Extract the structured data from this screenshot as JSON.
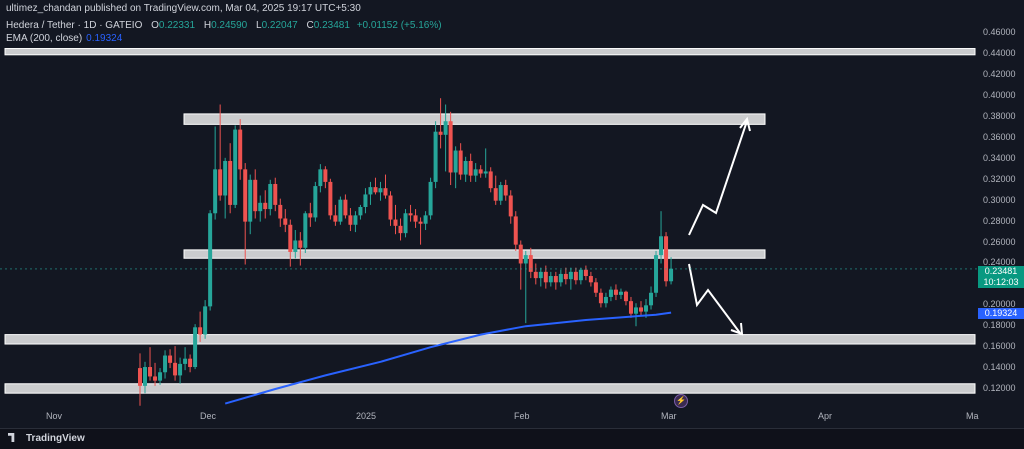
{
  "header": {
    "published": "ultimez_chandan published on TradingView.com, Mar 04, 2025 19:17 UTC+5:30"
  },
  "legend": {
    "symbol": "Hedera / Tether · 1D · GATEIO",
    "open_label": "O",
    "open": "0.22331",
    "high_label": "H",
    "high": "0.24590",
    "low_label": "L",
    "low": "0.22047",
    "close_label": "C",
    "close": "0.23481",
    "change": "+0.01152 (+5.16%)"
  },
  "ema": {
    "label": "EMA (200, close)",
    "value": "0.19324"
  },
  "price_axis": {
    "ticks": [
      "0.46000",
      "0.44000",
      "0.42000",
      "0.40000",
      "0.38000",
      "0.36000",
      "0.34000",
      "0.32000",
      "0.30000",
      "0.28000",
      "0.26000",
      "0.24000",
      "0.22000",
      "0.20000",
      "0.18000",
      "0.16000",
      "0.14000",
      "0.12000"
    ],
    "current_price": "0.23481",
    "countdown": "10:12:03",
    "ema_price": "0.19324"
  },
  "time_axis": {
    "ticks": [
      "Nov",
      "Dec",
      "2025",
      "Feb",
      "Mar",
      "Apr",
      "Ma"
    ]
  },
  "colors": {
    "up": "#26a69a",
    "down": "#ef5350",
    "ema": "#2962ff",
    "zone": "#ffffff",
    "arrow": "#ffffff"
  },
  "footer": {
    "brand": "TradingView"
  },
  "chart_data": {
    "type": "candlestick",
    "ylim": [
      0.105,
      0.47
    ],
    "candles": [
      {
        "d": "2024-11-18",
        "o": 0.14,
        "h": 0.154,
        "l": 0.104,
        "c": 0.123
      },
      {
        "d": "2024-11-19",
        "o": 0.123,
        "h": 0.146,
        "l": 0.116,
        "c": 0.141
      },
      {
        "d": "2024-11-20",
        "o": 0.141,
        "h": 0.16,
        "l": 0.128,
        "c": 0.132
      },
      {
        "d": "2024-11-21",
        "o": 0.132,
        "h": 0.145,
        "l": 0.123,
        "c": 0.128
      },
      {
        "d": "2024-11-22",
        "o": 0.128,
        "h": 0.14,
        "l": 0.124,
        "c": 0.136
      },
      {
        "d": "2024-11-23",
        "o": 0.136,
        "h": 0.157,
        "l": 0.13,
        "c": 0.152
      },
      {
        "d": "2024-11-24",
        "o": 0.152,
        "h": 0.158,
        "l": 0.14,
        "c": 0.145
      },
      {
        "d": "2024-11-25",
        "o": 0.145,
        "h": 0.161,
        "l": 0.128,
        "c": 0.133
      },
      {
        "d": "2024-11-26",
        "o": 0.133,
        "h": 0.15,
        "l": 0.125,
        "c": 0.144
      },
      {
        "d": "2024-11-27",
        "o": 0.144,
        "h": 0.16,
        "l": 0.138,
        "c": 0.149
      },
      {
        "d": "2024-11-28",
        "o": 0.149,
        "h": 0.153,
        "l": 0.136,
        "c": 0.141
      },
      {
        "d": "2024-11-29",
        "o": 0.141,
        "h": 0.182,
        "l": 0.139,
        "c": 0.179
      },
      {
        "d": "2024-11-30",
        "o": 0.179,
        "h": 0.194,
        "l": 0.165,
        "c": 0.172
      },
      {
        "d": "2024-12-01",
        "o": 0.172,
        "h": 0.205,
        "l": 0.168,
        "c": 0.199
      },
      {
        "d": "2024-12-02",
        "o": 0.199,
        "h": 0.291,
        "l": 0.195,
        "c": 0.288
      },
      {
        "d": "2024-12-03",
        "o": 0.288,
        "h": 0.371,
        "l": 0.282,
        "c": 0.33
      },
      {
        "d": "2024-12-04",
        "o": 0.33,
        "h": 0.392,
        "l": 0.3,
        "c": 0.305
      },
      {
        "d": "2024-12-05",
        "o": 0.305,
        "h": 0.341,
        "l": 0.283,
        "c": 0.338
      },
      {
        "d": "2024-12-06",
        "o": 0.338,
        "h": 0.355,
        "l": 0.288,
        "c": 0.296
      },
      {
        "d": "2024-12-07",
        "o": 0.296,
        "h": 0.372,
        "l": 0.293,
        "c": 0.368
      },
      {
        "d": "2024-12-08",
        "o": 0.368,
        "h": 0.378,
        "l": 0.32,
        "c": 0.33
      },
      {
        "d": "2024-12-09",
        "o": 0.33,
        "h": 0.336,
        "l": 0.239,
        "c": 0.28
      },
      {
        "d": "2024-12-10",
        "o": 0.28,
        "h": 0.325,
        "l": 0.268,
        "c": 0.32
      },
      {
        "d": "2024-12-11",
        "o": 0.32,
        "h": 0.33,
        "l": 0.283,
        "c": 0.29
      },
      {
        "d": "2024-12-12",
        "o": 0.29,
        "h": 0.305,
        "l": 0.28,
        "c": 0.298
      },
      {
        "d": "2024-12-13",
        "o": 0.298,
        "h": 0.31,
        "l": 0.283,
        "c": 0.292
      },
      {
        "d": "2024-12-14",
        "o": 0.292,
        "h": 0.32,
        "l": 0.286,
        "c": 0.316
      },
      {
        "d": "2024-12-15",
        "o": 0.316,
        "h": 0.322,
        "l": 0.29,
        "c": 0.296
      },
      {
        "d": "2024-12-16",
        "o": 0.296,
        "h": 0.302,
        "l": 0.275,
        "c": 0.283
      },
      {
        "d": "2024-12-17",
        "o": 0.283,
        "h": 0.292,
        "l": 0.27,
        "c": 0.277
      },
      {
        "d": "2024-12-18",
        "o": 0.277,
        "h": 0.282,
        "l": 0.237,
        "c": 0.251
      },
      {
        "d": "2024-12-19",
        "o": 0.251,
        "h": 0.272,
        "l": 0.245,
        "c": 0.262
      },
      {
        "d": "2024-12-20",
        "o": 0.262,
        "h": 0.27,
        "l": 0.238,
        "c": 0.255
      },
      {
        "d": "2024-12-21",
        "o": 0.255,
        "h": 0.29,
        "l": 0.25,
        "c": 0.288
      },
      {
        "d": "2024-12-22",
        "o": 0.288,
        "h": 0.298,
        "l": 0.275,
        "c": 0.284
      },
      {
        "d": "2024-12-23",
        "o": 0.284,
        "h": 0.318,
        "l": 0.28,
        "c": 0.314
      },
      {
        "d": "2024-12-24",
        "o": 0.314,
        "h": 0.335,
        "l": 0.308,
        "c": 0.33
      },
      {
        "d": "2024-12-25",
        "o": 0.33,
        "h": 0.333,
        "l": 0.312,
        "c": 0.318
      },
      {
        "d": "2024-12-26",
        "o": 0.318,
        "h": 0.321,
        "l": 0.282,
        "c": 0.286
      },
      {
        "d": "2024-12-27",
        "o": 0.286,
        "h": 0.296,
        "l": 0.276,
        "c": 0.28
      },
      {
        "d": "2024-12-28",
        "o": 0.28,
        "h": 0.304,
        "l": 0.277,
        "c": 0.301
      },
      {
        "d": "2024-12-29",
        "o": 0.301,
        "h": 0.306,
        "l": 0.283,
        "c": 0.286
      },
      {
        "d": "2024-12-30",
        "o": 0.286,
        "h": 0.293,
        "l": 0.271,
        "c": 0.277
      },
      {
        "d": "2024-12-31",
        "o": 0.277,
        "h": 0.29,
        "l": 0.27,
        "c": 0.286
      },
      {
        "d": "2025-01-01",
        "o": 0.286,
        "h": 0.296,
        "l": 0.282,
        "c": 0.294
      },
      {
        "d": "2025-01-02",
        "o": 0.294,
        "h": 0.312,
        "l": 0.288,
        "c": 0.306
      },
      {
        "d": "2025-01-03",
        "o": 0.306,
        "h": 0.318,
        "l": 0.296,
        "c": 0.313
      },
      {
        "d": "2025-01-04",
        "o": 0.313,
        "h": 0.322,
        "l": 0.306,
        "c": 0.308
      },
      {
        "d": "2025-01-05",
        "o": 0.308,
        "h": 0.318,
        "l": 0.3,
        "c": 0.312
      },
      {
        "d": "2025-01-06",
        "o": 0.312,
        "h": 0.325,
        "l": 0.302,
        "c": 0.305
      },
      {
        "d": "2025-01-07",
        "o": 0.305,
        "h": 0.309,
        "l": 0.276,
        "c": 0.282
      },
      {
        "d": "2025-01-08",
        "o": 0.282,
        "h": 0.296,
        "l": 0.268,
        "c": 0.276
      },
      {
        "d": "2025-01-09",
        "o": 0.276,
        "h": 0.283,
        "l": 0.262,
        "c": 0.269
      },
      {
        "d": "2025-01-10",
        "o": 0.269,
        "h": 0.292,
        "l": 0.265,
        "c": 0.288
      },
      {
        "d": "2025-01-11",
        "o": 0.288,
        "h": 0.296,
        "l": 0.28,
        "c": 0.286
      },
      {
        "d": "2025-01-12",
        "o": 0.286,
        "h": 0.292,
        "l": 0.274,
        "c": 0.28
      },
      {
        "d": "2025-01-13",
        "o": 0.28,
        "h": 0.284,
        "l": 0.258,
        "c": 0.278
      },
      {
        "d": "2025-01-14",
        "o": 0.278,
        "h": 0.29,
        "l": 0.272,
        "c": 0.286
      },
      {
        "d": "2025-01-15",
        "o": 0.286,
        "h": 0.322,
        "l": 0.282,
        "c": 0.318
      },
      {
        "d": "2025-01-16",
        "o": 0.318,
        "h": 0.376,
        "l": 0.312,
        "c": 0.366
      },
      {
        "d": "2025-01-17",
        "o": 0.366,
        "h": 0.398,
        "l": 0.35,
        "c": 0.363
      },
      {
        "d": "2025-01-18",
        "o": 0.363,
        "h": 0.392,
        "l": 0.328,
        "c": 0.376
      },
      {
        "d": "2025-01-19",
        "o": 0.376,
        "h": 0.385,
        "l": 0.315,
        "c": 0.327
      },
      {
        "d": "2025-01-20",
        "o": 0.327,
        "h": 0.352,
        "l": 0.312,
        "c": 0.348
      },
      {
        "d": "2025-01-21",
        "o": 0.348,
        "h": 0.355,
        "l": 0.32,
        "c": 0.325
      },
      {
        "d": "2025-01-22",
        "o": 0.325,
        "h": 0.342,
        "l": 0.318,
        "c": 0.338
      },
      {
        "d": "2025-01-23",
        "o": 0.338,
        "h": 0.345,
        "l": 0.318,
        "c": 0.324
      },
      {
        "d": "2025-01-24",
        "o": 0.324,
        "h": 0.336,
        "l": 0.318,
        "c": 0.33
      },
      {
        "d": "2025-01-25",
        "o": 0.33,
        "h": 0.334,
        "l": 0.322,
        "c": 0.326
      },
      {
        "d": "2025-01-26",
        "o": 0.326,
        "h": 0.35,
        "l": 0.322,
        "c": 0.328
      },
      {
        "d": "2025-01-27",
        "o": 0.328,
        "h": 0.332,
        "l": 0.308,
        "c": 0.312
      },
      {
        "d": "2025-01-28",
        "o": 0.312,
        "h": 0.324,
        "l": 0.296,
        "c": 0.3
      },
      {
        "d": "2025-01-29",
        "o": 0.3,
        "h": 0.318,
        "l": 0.296,
        "c": 0.315
      },
      {
        "d": "2025-01-30",
        "o": 0.315,
        "h": 0.32,
        "l": 0.3,
        "c": 0.305
      },
      {
        "d": "2025-01-31",
        "o": 0.305,
        "h": 0.31,
        "l": 0.278,
        "c": 0.285
      },
      {
        "d": "2025-02-01",
        "o": 0.285,
        "h": 0.29,
        "l": 0.252,
        "c": 0.258
      },
      {
        "d": "2025-02-02",
        "o": 0.258,
        "h": 0.262,
        "l": 0.215,
        "c": 0.24
      },
      {
        "d": "2025-02-03",
        "o": 0.24,
        "h": 0.252,
        "l": 0.183,
        "c": 0.248
      },
      {
        "d": "2025-02-04",
        "o": 0.248,
        "h": 0.255,
        "l": 0.226,
        "c": 0.232
      },
      {
        "d": "2025-02-05",
        "o": 0.232,
        "h": 0.24,
        "l": 0.22,
        "c": 0.226
      },
      {
        "d": "2025-02-06",
        "o": 0.226,
        "h": 0.236,
        "l": 0.218,
        "c": 0.232
      },
      {
        "d": "2025-02-07",
        "o": 0.232,
        "h": 0.238,
        "l": 0.216,
        "c": 0.222
      },
      {
        "d": "2025-02-08",
        "o": 0.222,
        "h": 0.232,
        "l": 0.218,
        "c": 0.228
      },
      {
        "d": "2025-02-09",
        "o": 0.228,
        "h": 0.232,
        "l": 0.215,
        "c": 0.222
      },
      {
        "d": "2025-02-10",
        "o": 0.222,
        "h": 0.234,
        "l": 0.218,
        "c": 0.23
      },
      {
        "d": "2025-02-11",
        "o": 0.23,
        "h": 0.236,
        "l": 0.22,
        "c": 0.225
      },
      {
        "d": "2025-02-12",
        "o": 0.225,
        "h": 0.236,
        "l": 0.215,
        "c": 0.232
      },
      {
        "d": "2025-02-13",
        "o": 0.232,
        "h": 0.236,
        "l": 0.22,
        "c": 0.224
      },
      {
        "d": "2025-02-14",
        "o": 0.224,
        "h": 0.236,
        "l": 0.22,
        "c": 0.234
      },
      {
        "d": "2025-02-15",
        "o": 0.234,
        "h": 0.238,
        "l": 0.224,
        "c": 0.228
      },
      {
        "d": "2025-02-16",
        "o": 0.228,
        "h": 0.232,
        "l": 0.218,
        "c": 0.222
      },
      {
        "d": "2025-02-17",
        "o": 0.222,
        "h": 0.226,
        "l": 0.208,
        "c": 0.212
      },
      {
        "d": "2025-02-18",
        "o": 0.212,
        "h": 0.216,
        "l": 0.198,
        "c": 0.202
      },
      {
        "d": "2025-02-19",
        "o": 0.202,
        "h": 0.212,
        "l": 0.198,
        "c": 0.208
      },
      {
        "d": "2025-02-20",
        "o": 0.208,
        "h": 0.218,
        "l": 0.204,
        "c": 0.215
      },
      {
        "d": "2025-02-21",
        "o": 0.215,
        "h": 0.22,
        "l": 0.205,
        "c": 0.21
      },
      {
        "d": "2025-02-22",
        "o": 0.21,
        "h": 0.216,
        "l": 0.206,
        "c": 0.213
      },
      {
        "d": "2025-02-23",
        "o": 0.213,
        "h": 0.214,
        "l": 0.2,
        "c": 0.204
      },
      {
        "d": "2025-02-24",
        "o": 0.204,
        "h": 0.208,
        "l": 0.188,
        "c": 0.192
      },
      {
        "d": "2025-02-25",
        "o": 0.192,
        "h": 0.202,
        "l": 0.18,
        "c": 0.198
      },
      {
        "d": "2025-02-26",
        "o": 0.198,
        "h": 0.204,
        "l": 0.19,
        "c": 0.194
      },
      {
        "d": "2025-02-27",
        "o": 0.194,
        "h": 0.206,
        "l": 0.188,
        "c": 0.2
      },
      {
        "d": "2025-02-28",
        "o": 0.2,
        "h": 0.218,
        "l": 0.196,
        "c": 0.212
      },
      {
        "d": "2025-03-01",
        "o": 0.212,
        "h": 0.252,
        "l": 0.208,
        "c": 0.248
      },
      {
        "d": "2025-03-02",
        "o": 0.248,
        "h": 0.29,
        "l": 0.24,
        "c": 0.266
      },
      {
        "d": "2025-03-03",
        "o": 0.266,
        "h": 0.27,
        "l": 0.218,
        "c": 0.223
      },
      {
        "d": "2025-03-04",
        "o": 0.223,
        "h": 0.246,
        "l": 0.22,
        "c": 0.235
      }
    ],
    "ema200": [
      {
        "d": "2024-12-05",
        "v": 0.106
      },
      {
        "d": "2024-12-15",
        "v": 0.12
      },
      {
        "d": "2024-12-25",
        "v": 0.133
      },
      {
        "d": "2025-01-05",
        "v": 0.146
      },
      {
        "d": "2025-01-15",
        "v": 0.16
      },
      {
        "d": "2025-01-25",
        "v": 0.172
      },
      {
        "d": "2025-02-03",
        "v": 0.18
      },
      {
        "d": "2025-02-15",
        "v": 0.186
      },
      {
        "d": "2025-03-01",
        "v": 0.191
      },
      {
        "d": "2025-03-04",
        "v": 0.193
      }
    ],
    "zones": [
      {
        "from": 0.4395,
        "to": 0.4455
      },
      {
        "from": 0.373,
        "to": 0.383
      },
      {
        "from": 0.245,
        "to": 0.253
      },
      {
        "from": 0.163,
        "to": 0.172
      },
      {
        "from": 0.116,
        "to": 0.125
      }
    ]
  }
}
